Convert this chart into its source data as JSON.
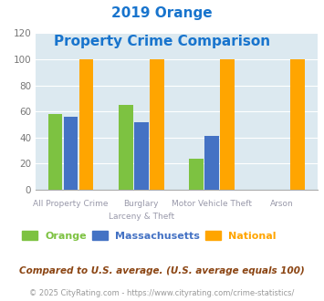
{
  "title_line1": "2019 Orange",
  "title_line2": "Property Crime Comparison",
  "category_labels_line1": [
    "All Property Crime",
    "Burglary",
    "Motor Vehicle Theft",
    "Arson"
  ],
  "category_labels_line2": [
    "",
    "Larceny & Theft",
    "",
    ""
  ],
  "orange_values": [
    58,
    65,
    24,
    0
  ],
  "massachusetts_values": [
    56,
    52,
    41,
    0
  ],
  "national_values": [
    100,
    100,
    100,
    100
  ],
  "bar_colors": {
    "orange": "#7DC241",
    "massachusetts": "#4472C4",
    "national": "#FFA500"
  },
  "ylim": [
    0,
    120
  ],
  "yticks": [
    0,
    20,
    40,
    60,
    80,
    100,
    120
  ],
  "legend_labels": [
    "Orange",
    "Massachusetts",
    "National"
  ],
  "footnote1": "Compared to U.S. average. (U.S. average equals 100)",
  "footnote2": "© 2025 CityRating.com - https://www.cityrating.com/crime-statistics/",
  "title_color": "#1874CD",
  "footnote1_color": "#8B4513",
  "footnote2_color": "#999999",
  "url_color": "#4472C4",
  "plot_bg_color": "#DCE9F0",
  "grid_color": "#ffffff",
  "label_color": "#9999AA",
  "ytick_color": "#777777"
}
